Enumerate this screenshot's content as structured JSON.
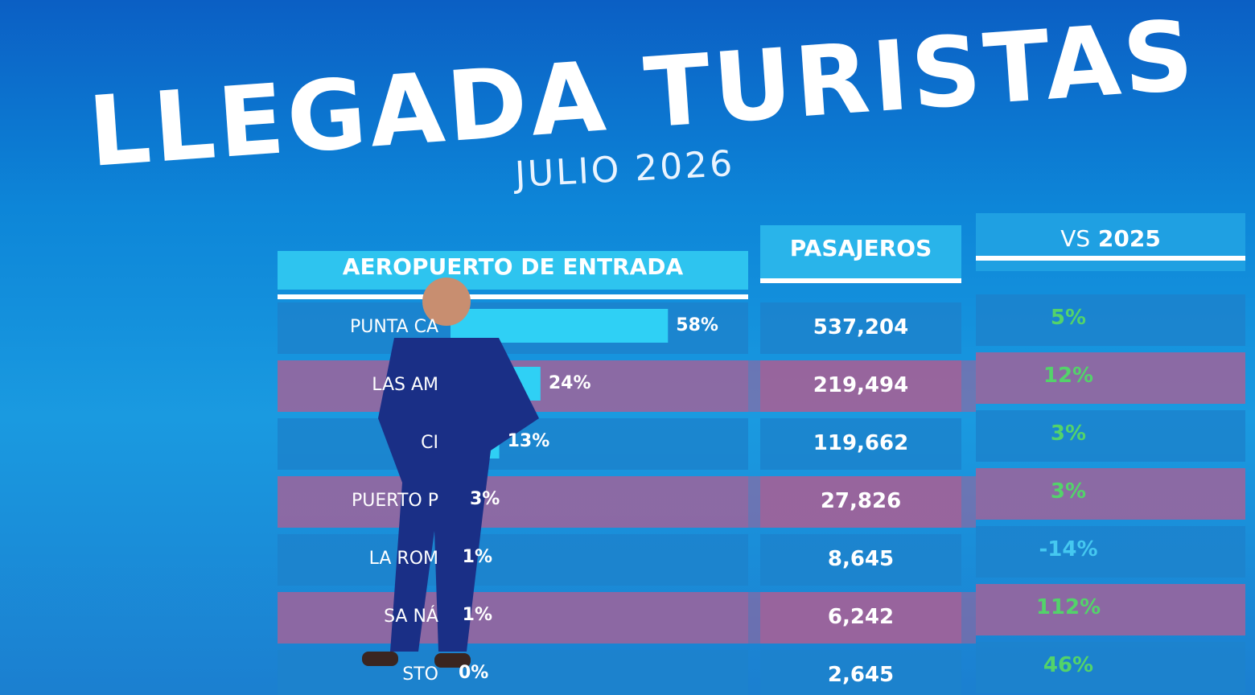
{
  "header": {
    "title": "LLEGADA TURISTAS",
    "subtitle": "JULIO 2026"
  },
  "table": {
    "columns": [
      "AEROPUERTO DE ENTRADA",
      "PASAJEROS",
      {
        "prefix": "VS",
        "year": "2025"
      }
    ],
    "rows": [
      {
        "airport": "PUNTA CA",
        "share": 58,
        "share_label": "58%",
        "passengers": "537,204",
        "change": "5%"
      },
      {
        "airport": "LAS AM",
        "share": 24,
        "share_label": "24%",
        "passengers": "219,494",
        "change": "12%"
      },
      {
        "airport": "CI",
        "share": 13,
        "share_label": "13%",
        "passengers": "119,662",
        "change": "3%"
      },
      {
        "airport": "PUERTO P",
        "share": 3,
        "share_label": "3%",
        "passengers": "27,826",
        "change": "3%"
      },
      {
        "airport": "LA ROM",
        "share": 1,
        "share_label": "1%",
        "passengers": "8,645",
        "change": "-14%"
      },
      {
        "airport": "SA NÁ",
        "share": 1,
        "share_label": "1%",
        "passengers": "6,242",
        "change": "112%"
      },
      {
        "airport": "STO",
        "share": 0,
        "share_label": "0%",
        "passengers": "2,645",
        "change": "46%"
      }
    ]
  }
}
